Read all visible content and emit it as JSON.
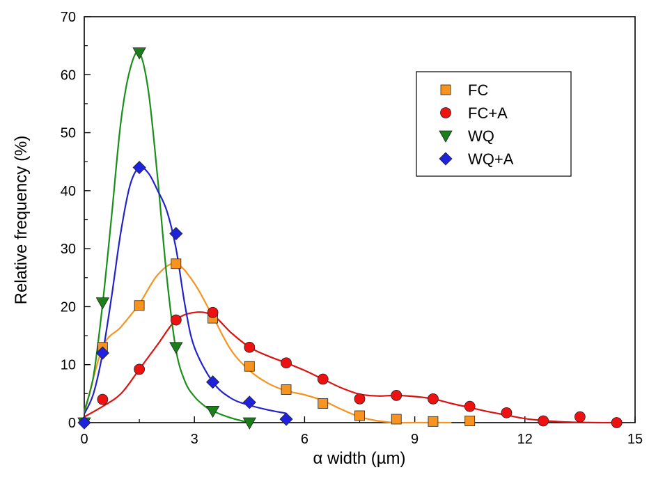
{
  "chart_data": {
    "type": "scatter",
    "xlabel": "α width (µm)",
    "ylabel": "Relative frequency (%)",
    "xlim": [
      0,
      15
    ],
    "ylim": [
      0,
      70
    ],
    "x_ticks": [
      0,
      3,
      6,
      9,
      12,
      15
    ],
    "y_ticks": [
      0,
      10,
      20,
      30,
      40,
      50,
      60,
      70
    ],
    "grid": false,
    "legend_position": "top-right",
    "series": [
      {
        "name": "FC",
        "marker": "square",
        "marker_color": "#F7931E",
        "line_color": "#F7931E",
        "x": [
          0.5,
          1.5,
          2.5,
          3.5,
          4.5,
          5.5,
          6.5,
          7.5,
          8.5,
          9.5,
          10.5
        ],
        "y": [
          13,
          20.2,
          27.4,
          18,
          9.7,
          5.7,
          3.3,
          1.2,
          0.6,
          0.2,
          0.3
        ]
      },
      {
        "name": "FC+A",
        "marker": "circle",
        "marker_color": "#EE1111",
        "line_color": "#DD1111",
        "x": [
          0.5,
          1.5,
          2.5,
          3.5,
          4.5,
          5.5,
          6.5,
          7.5,
          8.5,
          9.5,
          10.5,
          11.5,
          12.5,
          13.5,
          14.5
        ],
        "y": [
          4,
          9.2,
          17.7,
          19,
          13,
          10.3,
          7.5,
          4.1,
          4.7,
          4.1,
          2.8,
          1.7,
          0.3,
          1,
          0
        ]
      },
      {
        "name": "WQ",
        "marker": "triangle-down",
        "marker_color": "#1A7F1A",
        "line_color": "#1A8F1A",
        "x": [
          0,
          0.5,
          1.5,
          2.5,
          3.5,
          4.5
        ],
        "y": [
          0,
          20.7,
          63.8,
          13,
          2,
          0
        ]
      },
      {
        "name": "WQ+A",
        "marker": "diamond",
        "marker_color": "#1E22DD",
        "line_color": "#2222CC",
        "x": [
          0,
          0.5,
          1.5,
          2.5,
          3.5,
          4.5,
          5.5
        ],
        "y": [
          0,
          12,
          44,
          32.6,
          7,
          3.5,
          0.6
        ]
      }
    ],
    "curves": [
      {
        "series": "FC",
        "color": "#F7931E",
        "x": [
          0,
          0.5,
          1,
          1.5,
          2,
          2.5,
          3,
          3.5,
          4,
          4.5,
          5,
          5.5,
          6,
          6.5,
          7,
          7.5,
          8,
          8.5,
          9,
          9.5,
          10
        ],
        "y": [
          1.5,
          13,
          16.5,
          20.5,
          25.5,
          27.4,
          24,
          18.3,
          12.5,
          9,
          6.8,
          5.5,
          4.8,
          3.8,
          2.3,
          1,
          0.3,
          0,
          0,
          0,
          0
        ]
      },
      {
        "series": "FC+A",
        "color": "#DD1111",
        "x": [
          0,
          0.5,
          1,
          1.5,
          2,
          2.5,
          3,
          3.5,
          4,
          4.5,
          5,
          5.5,
          6,
          6.5,
          7,
          7.5,
          8,
          8.5,
          9,
          9.5,
          10,
          10.5,
          11,
          11.5,
          12,
          12.5,
          13,
          13.5,
          14,
          14.5
        ],
        "y": [
          1,
          2.8,
          5,
          9.2,
          13.5,
          17.7,
          19,
          18.5,
          15.5,
          13,
          11.5,
          10.3,
          9,
          7.5,
          6,
          4.9,
          4.6,
          4.7,
          4.5,
          4.1,
          3.3,
          2.6,
          1.9,
          1.3,
          0.7,
          0.35,
          0.15,
          0.05,
          0,
          0
        ]
      },
      {
        "series": "WQ",
        "color": "#1A8F1A",
        "x": [
          0,
          0.25,
          0.5,
          0.75,
          1,
          1.25,
          1.5,
          1.75,
          2,
          2.25,
          2.5,
          2.75,
          3,
          3.25,
          3.5,
          4,
          4.5
        ],
        "y": [
          2,
          8,
          20.5,
          36,
          52,
          61,
          63.8,
          57,
          42,
          25,
          12.5,
          7,
          4.5,
          3,
          2,
          0.8,
          0
        ]
      },
      {
        "series": "WQ+A",
        "color": "#2222CC",
        "x": [
          0,
          0.25,
          0.5,
          0.75,
          1,
          1.25,
          1.5,
          1.75,
          2,
          2.25,
          2.5,
          2.75,
          3,
          3.5,
          4,
          4.5,
          5,
          5.5
        ],
        "y": [
          1.5,
          5,
          12,
          22,
          33,
          41,
          44,
          43,
          40,
          36.5,
          30,
          20,
          13,
          7,
          4.2,
          3,
          2.2,
          1.6
        ]
      }
    ]
  }
}
